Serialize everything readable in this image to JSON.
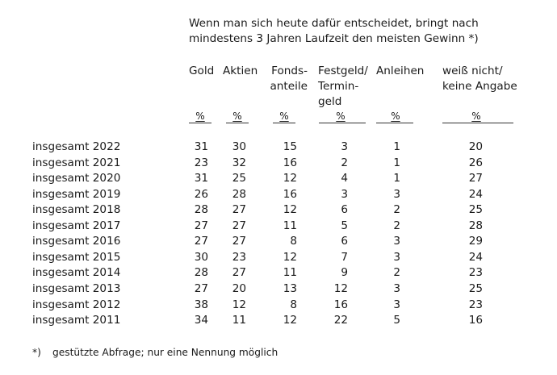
{
  "title_lines": [
    "Wenn man sich heute dafür entscheidet, bringt nach",
    "mindestens 3 Jahren Laufzeit den meisten Gewinn *)"
  ],
  "columns": [
    {
      "lines": [
        "Gold"
      ],
      "unit": "%"
    },
    {
      "lines": [
        "Aktien"
      ],
      "unit": "%"
    },
    {
      "lines": [
        "Fonds-",
        "anteile"
      ],
      "unit": "%"
    },
    {
      "lines": [
        "Festgeld/",
        "Termin-",
        "geld"
      ],
      "unit": "%"
    },
    {
      "lines": [
        "Anleihen"
      ],
      "unit": "%"
    },
    {
      "lines": [
        "weiß nicht/",
        "keine Angabe"
      ],
      "unit": "%"
    }
  ],
  "rows": [
    {
      "label": "insgesamt 2022",
      "values": [
        31,
        30,
        15,
        3,
        1,
        20
      ]
    },
    {
      "label": "insgesamt 2021",
      "values": [
        23,
        32,
        16,
        2,
        1,
        26
      ]
    },
    {
      "label": "insgesamt 2020",
      "values": [
        31,
        25,
        12,
        4,
        1,
        27
      ]
    },
    {
      "label": "insgesamt 2019",
      "values": [
        26,
        28,
        16,
        3,
        3,
        24
      ]
    },
    {
      "label": "insgesamt 2018",
      "values": [
        28,
        27,
        12,
        6,
        2,
        25
      ]
    },
    {
      "label": "insgesamt 2017",
      "values": [
        27,
        27,
        11,
        5,
        2,
        28
      ]
    },
    {
      "label": "insgesamt 2016",
      "values": [
        27,
        27,
        8,
        6,
        3,
        29
      ]
    },
    {
      "label": "insgesamt 2015",
      "values": [
        30,
        23,
        12,
        7,
        3,
        24
      ]
    },
    {
      "label": "insgesamt 2014",
      "values": [
        28,
        27,
        11,
        9,
        2,
        23
      ]
    },
    {
      "label": "insgesamt 2013",
      "values": [
        27,
        20,
        13,
        12,
        3,
        25
      ]
    },
    {
      "label": "insgesamt 2012",
      "values": [
        38,
        12,
        8,
        16,
        3,
        23
      ]
    },
    {
      "label": "insgesamt 2011",
      "values": [
        34,
        11,
        12,
        22,
        5,
        16
      ]
    }
  ],
  "footnote": {
    "marker": "*)",
    "text": "gestützte Abfrage; nur eine Nennung möglich"
  }
}
